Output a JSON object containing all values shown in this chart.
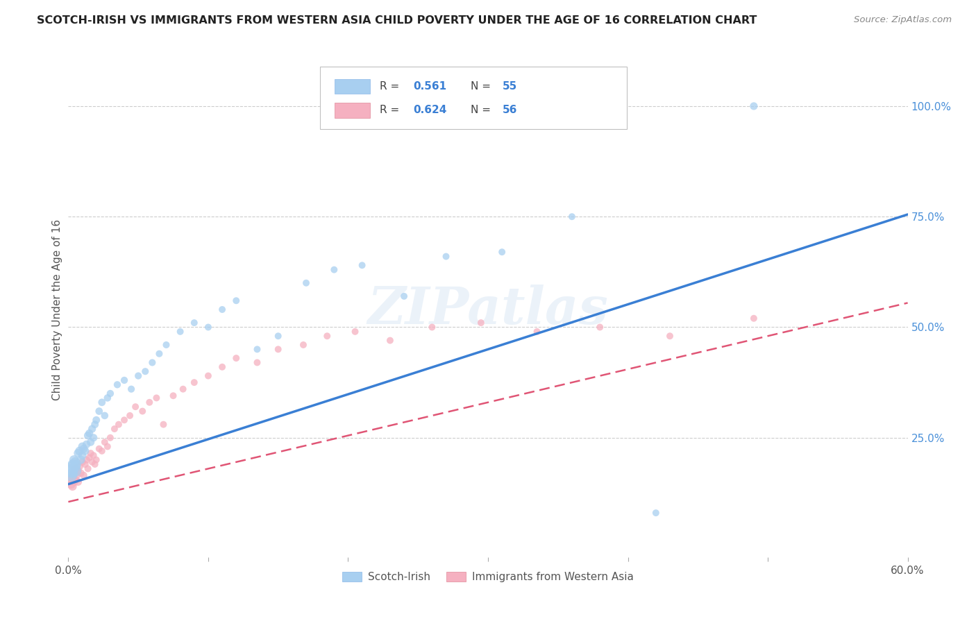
{
  "title": "SCOTCH-IRISH VS IMMIGRANTS FROM WESTERN ASIA CHILD POVERTY UNDER THE AGE OF 16 CORRELATION CHART",
  "source": "Source: ZipAtlas.com",
  "ylabel": "Child Poverty Under the Age of 16",
  "xlim": [
    0.0,
    0.6
  ],
  "ylim": [
    -0.02,
    1.1
  ],
  "series1_name": "Scotch-Irish",
  "series1_R": 0.561,
  "series1_N": 55,
  "series1_color": "#a8cff0",
  "series1_line_color": "#3a7fd4",
  "series2_name": "Immigrants from Western Asia",
  "series2_R": 0.624,
  "series2_N": 56,
  "series2_color": "#f5b0c0",
  "series2_line_color": "#e05575",
  "background_color": "#ffffff",
  "watermark": "ZIPatlas",
  "si_line_x0": 0.0,
  "si_line_y0": 0.145,
  "si_line_x1": 0.6,
  "si_line_y1": 0.755,
  "wa_line_x0": 0.0,
  "wa_line_y0": 0.105,
  "wa_line_x1": 0.6,
  "wa_line_y1": 0.555,
  "scotch_irish_x": [
    0.002,
    0.002,
    0.003,
    0.003,
    0.003,
    0.004,
    0.004,
    0.005,
    0.005,
    0.005,
    0.006,
    0.007,
    0.008,
    0.009,
    0.01,
    0.01,
    0.011,
    0.012,
    0.013,
    0.014,
    0.015,
    0.016,
    0.017,
    0.018,
    0.019,
    0.02,
    0.022,
    0.024,
    0.026,
    0.028,
    0.03,
    0.035,
    0.04,
    0.045,
    0.05,
    0.055,
    0.06,
    0.065,
    0.07,
    0.08,
    0.09,
    0.1,
    0.11,
    0.12,
    0.135,
    0.15,
    0.17,
    0.19,
    0.21,
    0.24,
    0.27,
    0.31,
    0.36,
    0.42,
    0.49
  ],
  "scotch_irish_y": [
    0.175,
    0.165,
    0.185,
    0.17,
    0.19,
    0.2,
    0.18,
    0.175,
    0.185,
    0.195,
    0.19,
    0.215,
    0.22,
    0.2,
    0.23,
    0.21,
    0.225,
    0.22,
    0.235,
    0.255,
    0.26,
    0.24,
    0.27,
    0.25,
    0.28,
    0.29,
    0.31,
    0.33,
    0.3,
    0.34,
    0.35,
    0.37,
    0.38,
    0.36,
    0.39,
    0.4,
    0.42,
    0.44,
    0.46,
    0.49,
    0.51,
    0.5,
    0.54,
    0.56,
    0.45,
    0.48,
    0.6,
    0.63,
    0.64,
    0.57,
    0.66,
    0.67,
    0.75,
    0.08,
    1.0
  ],
  "scotch_irish_size": [
    200,
    160,
    130,
    110,
    100,
    90,
    85,
    150,
    120,
    100,
    85,
    80,
    80,
    75,
    75,
    70,
    70,
    70,
    68,
    68,
    65,
    65,
    65,
    65,
    62,
    62,
    60,
    60,
    58,
    58,
    56,
    55,
    55,
    54,
    54,
    53,
    53,
    52,
    52,
    51,
    51,
    51,
    51,
    51,
    51,
    51,
    51,
    51,
    51,
    51,
    51,
    51,
    51,
    51,
    65
  ],
  "west_asia_x": [
    0.002,
    0.002,
    0.003,
    0.003,
    0.004,
    0.004,
    0.005,
    0.005,
    0.006,
    0.007,
    0.007,
    0.008,
    0.009,
    0.01,
    0.011,
    0.012,
    0.013,
    0.014,
    0.015,
    0.016,
    0.017,
    0.018,
    0.019,
    0.02,
    0.022,
    0.024,
    0.026,
    0.028,
    0.03,
    0.033,
    0.036,
    0.04,
    0.044,
    0.048,
    0.053,
    0.058,
    0.063,
    0.068,
    0.075,
    0.082,
    0.09,
    0.1,
    0.11,
    0.12,
    0.135,
    0.15,
    0.168,
    0.185,
    0.205,
    0.23,
    0.26,
    0.295,
    0.335,
    0.38,
    0.43,
    0.49
  ],
  "west_asia_y": [
    0.155,
    0.145,
    0.16,
    0.14,
    0.15,
    0.17,
    0.155,
    0.18,
    0.165,
    0.15,
    0.175,
    0.185,
    0.17,
    0.195,
    0.165,
    0.19,
    0.2,
    0.18,
    0.205,
    0.215,
    0.195,
    0.21,
    0.19,
    0.2,
    0.225,
    0.22,
    0.24,
    0.23,
    0.25,
    0.27,
    0.28,
    0.29,
    0.3,
    0.32,
    0.31,
    0.33,
    0.34,
    0.28,
    0.345,
    0.36,
    0.375,
    0.39,
    0.41,
    0.43,
    0.42,
    0.45,
    0.46,
    0.48,
    0.49,
    0.47,
    0.5,
    0.51,
    0.49,
    0.5,
    0.48,
    0.52
  ],
  "west_asia_size": [
    100,
    90,
    85,
    80,
    78,
    75,
    70,
    68,
    65,
    63,
    62,
    60,
    58,
    57,
    56,
    55,
    54,
    53,
    52,
    51,
    51,
    51,
    51,
    51,
    51,
    51,
    51,
    51,
    51,
    51,
    51,
    51,
    51,
    51,
    51,
    51,
    51,
    51,
    51,
    51,
    51,
    51,
    51,
    51,
    51,
    51,
    51,
    51,
    51,
    51,
    51,
    51,
    51,
    51,
    51,
    51
  ]
}
